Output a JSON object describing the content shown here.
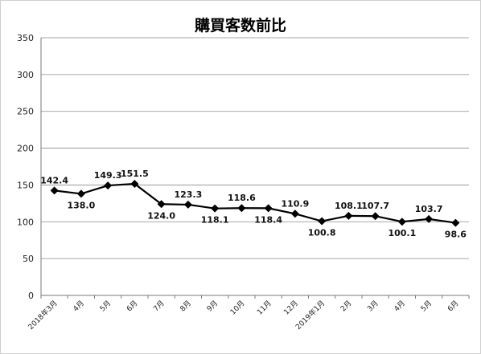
{
  "chart_data": {
    "type": "line",
    "title": "購買客数前比",
    "xlabel": "",
    "ylabel": "",
    "ylim": [
      0,
      350
    ],
    "yticks": [
      0,
      50,
      100,
      150,
      200,
      250,
      300,
      350
    ],
    "grid": true,
    "legend": "none",
    "categories": [
      "2018年3月",
      "4月",
      "5月",
      "6月",
      "7月",
      "8月",
      "9月",
      "10月",
      "11月",
      "12月",
      "2019年1月",
      "2月",
      "3月",
      "4月",
      "5月",
      "6月"
    ],
    "series": [
      {
        "values": [
          142.4,
          138.0,
          149.3,
          151.5,
          124.0,
          123.3,
          118.1,
          118.6,
          118.4,
          110.9,
          100.8,
          108.1,
          107.7,
          100.1,
          103.7,
          98.6
        ],
        "labels": [
          "142.4",
          "138.0",
          "149.3",
          "151.5",
          "124.0",
          "123.3",
          "118.1",
          "118.6",
          "118.4",
          "110.9",
          "100.8",
          "108.1",
          "107.7",
          "100.1",
          "103.7",
          "98.6"
        ],
        "label_positions": [
          "above",
          "below",
          "above",
          "above",
          "below",
          "above",
          "below",
          "above",
          "below",
          "above",
          "below",
          "above",
          "above",
          "below",
          "above",
          "below"
        ],
        "color": "#000000",
        "marker": "diamond"
      }
    ]
  }
}
